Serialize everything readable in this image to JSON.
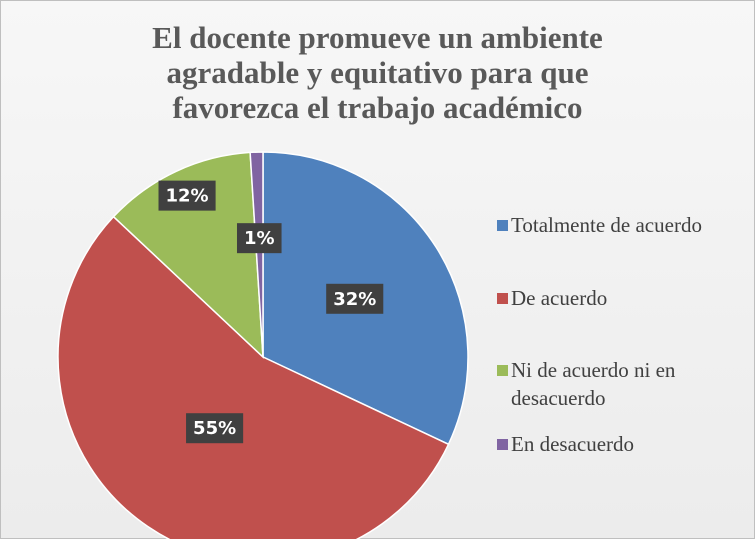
{
  "chart_data": {
    "type": "pie",
    "title": "El docente promueve un ambiente agradable y equitativo para que favorezca el trabajo académico",
    "categories": [
      "Totalmente de acuerdo",
      "De acuerdo",
      "Ni de acuerdo ni en desacuerdo",
      "En desacuerdo"
    ],
    "values": [
      32,
      55,
      12,
      1
    ],
    "value_labels": [
      "32%",
      "55%",
      "12%",
      "1%"
    ],
    "colors": [
      "#4f81bd",
      "#c0504d",
      "#9bbb59",
      "#8064a2"
    ],
    "legend": "right"
  }
}
